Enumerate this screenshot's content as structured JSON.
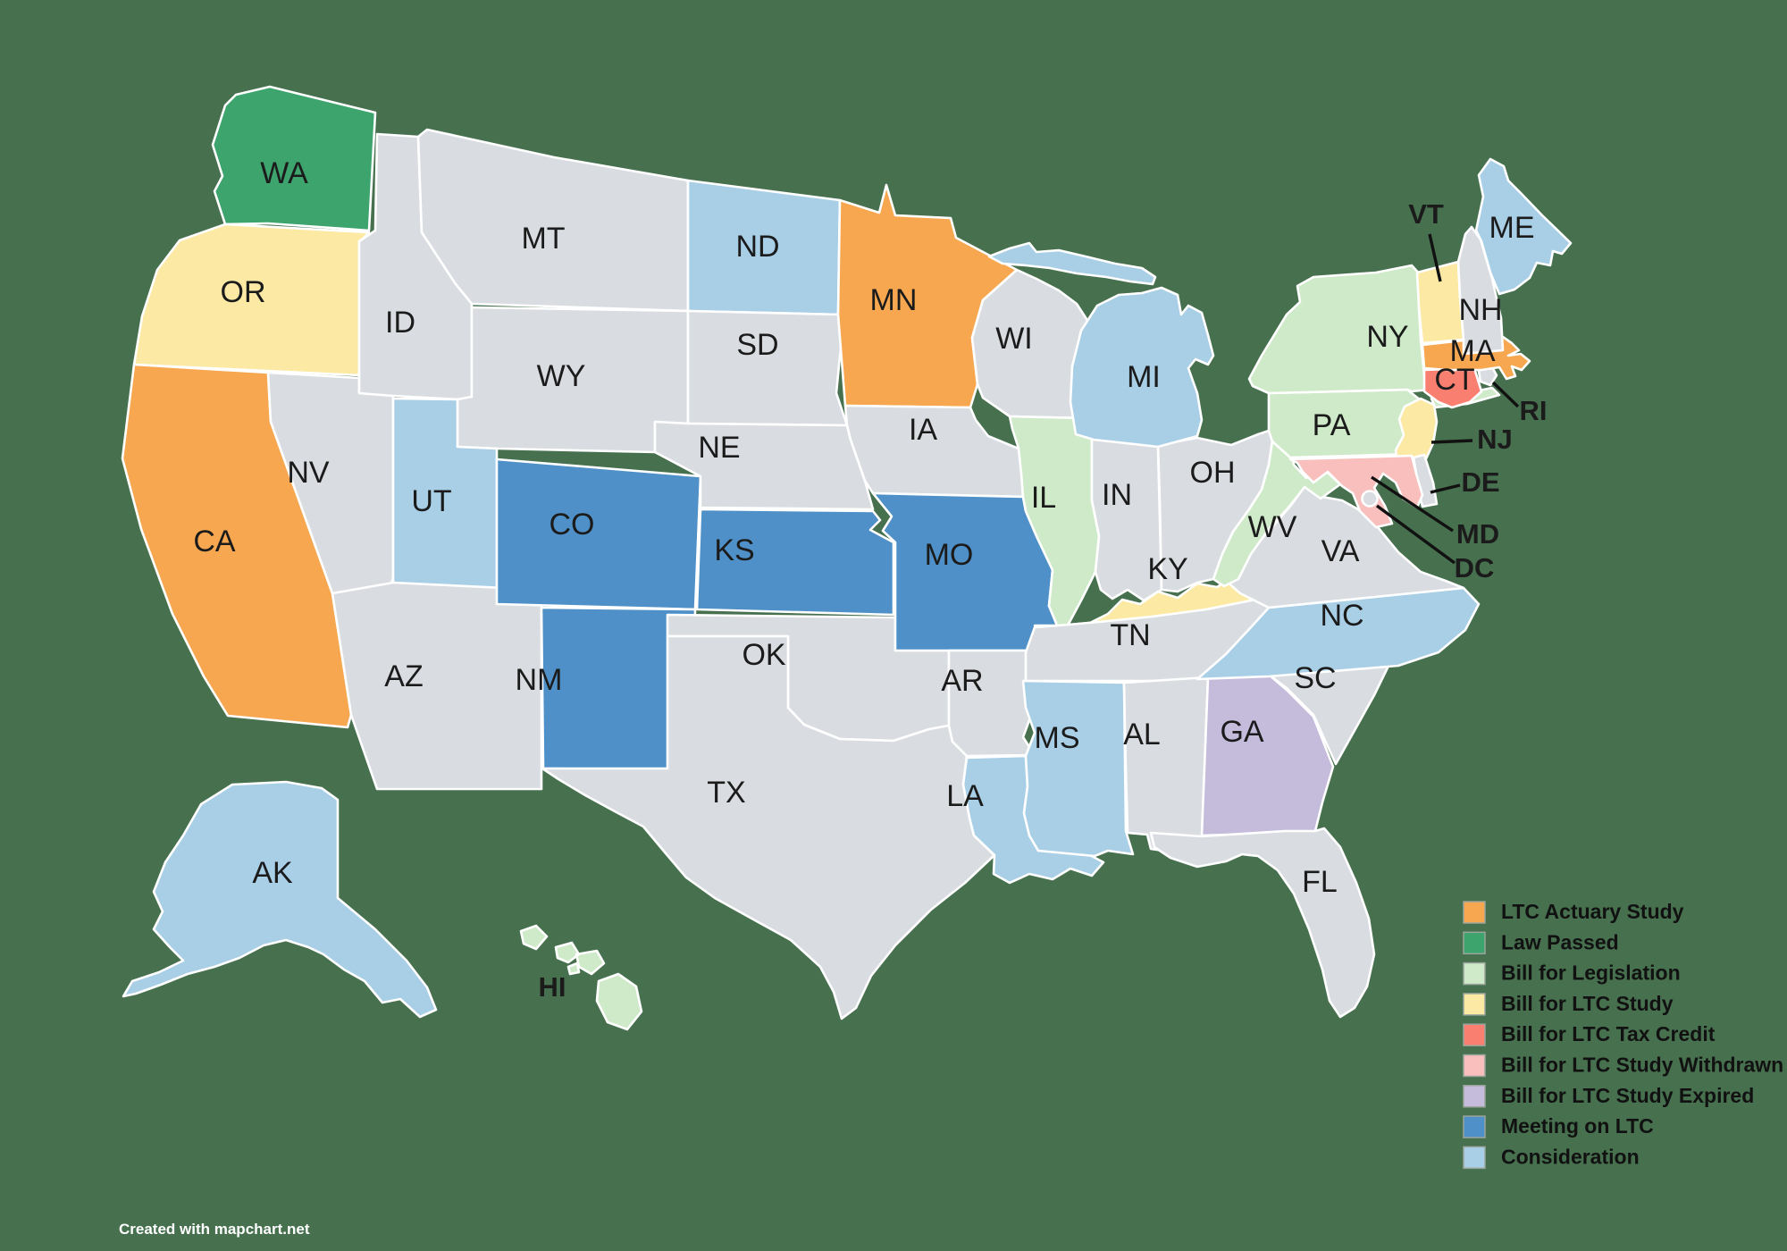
{
  "attribution": "Created with mapchart.net",
  "colors": {
    "background": "#47704F",
    "state_border": "#FFFFFF",
    "state_no_status": "#D9DDE1",
    "label": "#1b1b1b"
  },
  "legend": {
    "items": [
      {
        "label": "LTC Actuary Study",
        "color": "#F7A750"
      },
      {
        "label": "Law Passed",
        "color": "#3DA46E"
      },
      {
        "label": "Bill for Legislation",
        "color": "#CFEAC9"
      },
      {
        "label": "Bill for LTC Study",
        "color": "#FBE9A4"
      },
      {
        "label": "Bill for LTC Tax Credit",
        "color": "#F97F70"
      },
      {
        "label": "Bill for LTC Study Withdrawn",
        "color": "#F9BFBC"
      },
      {
        "label": "Bill for LTC Study Expired",
        "color": "#C5BCDC"
      },
      {
        "label": "Meeting on LTC",
        "color": "#4E90C7"
      },
      {
        "label": "Consideration",
        "color": "#A9CFE7"
      }
    ]
  },
  "states": [
    {
      "abbr": "WA",
      "status": "Law Passed"
    },
    {
      "abbr": "OR",
      "status": "Bill for LTC Study"
    },
    {
      "abbr": "CA",
      "status": "LTC Actuary Study"
    },
    {
      "abbr": "NV",
      "status": null
    },
    {
      "abbr": "ID",
      "status": null
    },
    {
      "abbr": "MT",
      "status": null
    },
    {
      "abbr": "WY",
      "status": null
    },
    {
      "abbr": "UT",
      "status": "Consideration"
    },
    {
      "abbr": "AZ",
      "status": null
    },
    {
      "abbr": "CO",
      "status": "Meeting on LTC"
    },
    {
      "abbr": "NM",
      "status": "Meeting on LTC"
    },
    {
      "abbr": "ND",
      "status": "Consideration"
    },
    {
      "abbr": "SD",
      "status": null
    },
    {
      "abbr": "NE",
      "status": null
    },
    {
      "abbr": "KS",
      "status": "Meeting on LTC"
    },
    {
      "abbr": "OK",
      "status": null
    },
    {
      "abbr": "TX",
      "status": null
    },
    {
      "abbr": "MN",
      "status": "LTC Actuary Study"
    },
    {
      "abbr": "IA",
      "status": null
    },
    {
      "abbr": "MO",
      "status": "Meeting on LTC"
    },
    {
      "abbr": "AR",
      "status": null
    },
    {
      "abbr": "LA",
      "status": "Consideration"
    },
    {
      "abbr": "WI",
      "status": null
    },
    {
      "abbr": "IL",
      "status": "Bill for Legislation"
    },
    {
      "abbr": "IN",
      "status": null
    },
    {
      "abbr": "OH",
      "status": null
    },
    {
      "abbr": "MI",
      "status": "Consideration"
    },
    {
      "abbr": "KY",
      "status": "Bill for LTC Study"
    },
    {
      "abbr": "TN",
      "status": null
    },
    {
      "abbr": "MS",
      "status": "Consideration"
    },
    {
      "abbr": "AL",
      "status": null
    },
    {
      "abbr": "GA",
      "status": "Bill for LTC Study Expired"
    },
    {
      "abbr": "FL",
      "status": null
    },
    {
      "abbr": "SC",
      "status": null
    },
    {
      "abbr": "NC",
      "status": "Consideration"
    },
    {
      "abbr": "VA",
      "status": null
    },
    {
      "abbr": "WV",
      "status": "Bill for Legislation"
    },
    {
      "abbr": "PA",
      "status": "Bill for Legislation"
    },
    {
      "abbr": "NY",
      "status": "Bill for Legislation"
    },
    {
      "abbr": "NJ",
      "status": "Bill for LTC Study"
    },
    {
      "abbr": "DE",
      "status": null
    },
    {
      "abbr": "MD",
      "status": "Bill for LTC Study Withdrawn"
    },
    {
      "abbr": "DC",
      "status": null
    },
    {
      "abbr": "CT",
      "status": "Bill for LTC Tax Credit"
    },
    {
      "abbr": "RI",
      "status": null
    },
    {
      "abbr": "MA",
      "status": "LTC Actuary Study"
    },
    {
      "abbr": "VT",
      "status": "Bill for LTC Study"
    },
    {
      "abbr": "NH",
      "status": null
    },
    {
      "abbr": "ME",
      "status": "Consideration"
    },
    {
      "abbr": "AK",
      "status": "Consideration"
    },
    {
      "abbr": "HI",
      "status": "Bill for Legislation"
    }
  ]
}
